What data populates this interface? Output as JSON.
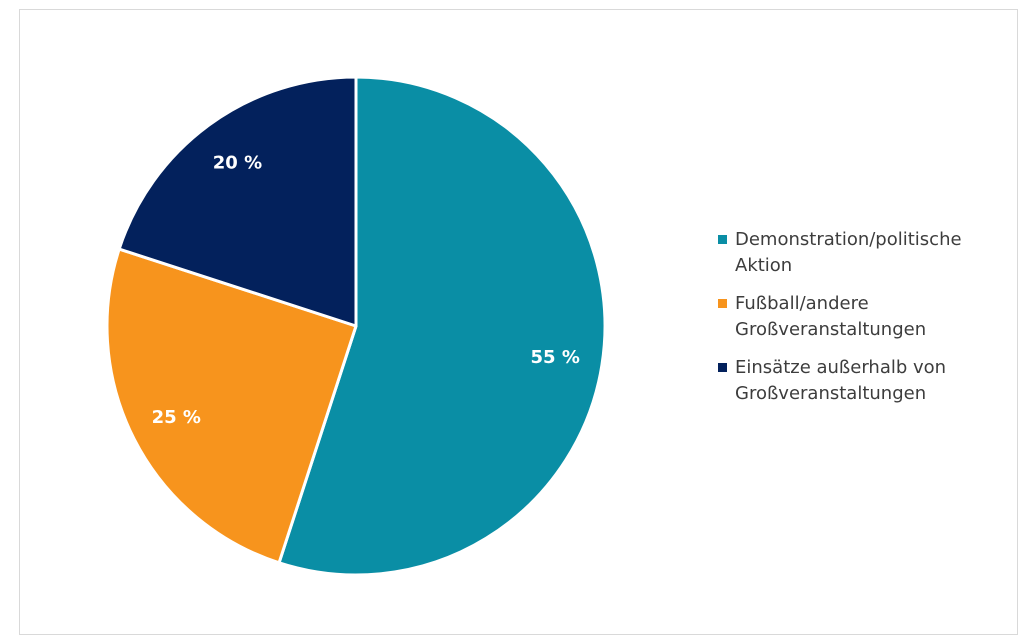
{
  "chart_data": {
    "type": "pie",
    "title": "",
    "slices": [
      {
        "label": "Demonstration/politische Aktion",
        "value": 55,
        "display": "55 %",
        "color": "#0a8ea5"
      },
      {
        "label": "Fußball/andere Großveranstaltungen",
        "value": 25,
        "display": "25 %",
        "color": "#f7941d"
      },
      {
        "label": "Einsätze außerhalb von Großveranstaltungen",
        "value": 20,
        "display": "20 %",
        "color": "#03215c"
      }
    ],
    "legend_position": "right",
    "start_angle": "12 o'clock",
    "direction": "clockwise"
  }
}
